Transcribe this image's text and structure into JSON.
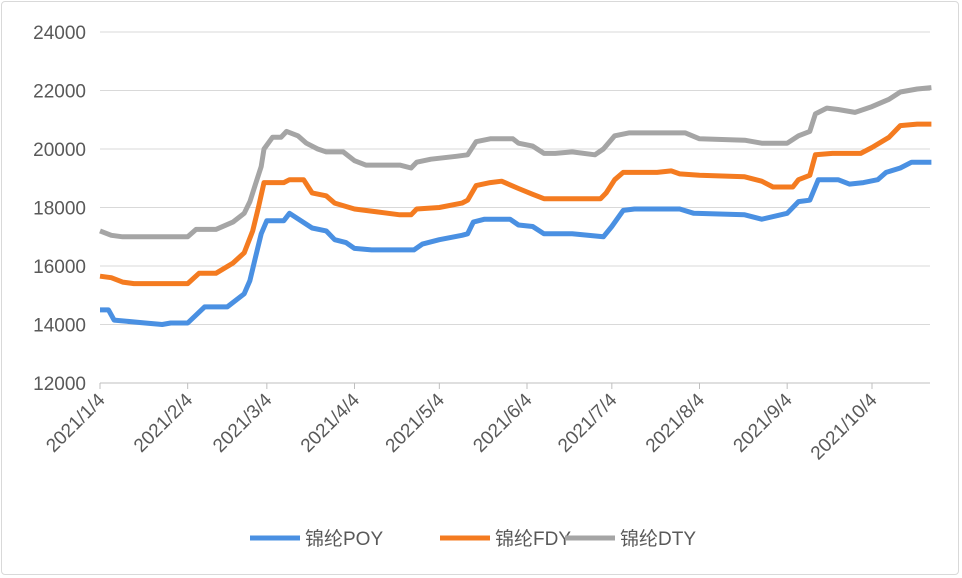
{
  "chart_data": {
    "type": "line",
    "title": "",
    "xlabel": "",
    "ylabel": "",
    "ylim": [
      12000,
      24000
    ],
    "yticks": [
      "12000",
      "14000",
      "16000",
      "18000",
      "20000",
      "22000",
      "24000"
    ],
    "xticks": [
      "2021/1/4",
      "2021/2/4",
      "2021/3/4",
      "2021/4/4",
      "2021/5/4",
      "2021/6/4",
      "2021/7/4",
      "2021/8/4",
      "2021/9/4",
      "2021/10/4"
    ],
    "grid": true,
    "legend": "bottom",
    "series": [
      {
        "name": "锦纶POY",
        "color": "#4a90e2",
        "points": [
          [
            "2021-01-04",
            14500
          ],
          [
            "2021-01-07",
            14500
          ],
          [
            "2021-01-09",
            14150
          ],
          [
            "2021-01-20",
            14050
          ],
          [
            "2021-01-26",
            14000
          ],
          [
            "2021-01-29",
            14050
          ],
          [
            "2021-02-04",
            14050
          ],
          [
            "2021-02-10",
            14600
          ],
          [
            "2021-02-18",
            14600
          ],
          [
            "2021-02-24",
            15050
          ],
          [
            "2021-02-26",
            15500
          ],
          [
            "2021-02-28",
            16300
          ],
          [
            "2021-03-02",
            17100
          ],
          [
            "2021-03-04",
            17550
          ],
          [
            "2021-03-10",
            17550
          ],
          [
            "2021-03-12",
            17800
          ],
          [
            "2021-03-20",
            17300
          ],
          [
            "2021-03-25",
            17200
          ],
          [
            "2021-03-28",
            16900
          ],
          [
            "2021-04-01",
            16800
          ],
          [
            "2021-04-04",
            16600
          ],
          [
            "2021-04-10",
            16550
          ],
          [
            "2021-04-25",
            16550
          ],
          [
            "2021-04-28",
            16750
          ],
          [
            "2021-05-04",
            16900
          ],
          [
            "2021-05-12",
            17050
          ],
          [
            "2021-05-14",
            17100
          ],
          [
            "2021-05-16",
            17500
          ],
          [
            "2021-05-20",
            17600
          ],
          [
            "2021-05-29",
            17600
          ],
          [
            "2021-06-01",
            17400
          ],
          [
            "2021-06-06",
            17350
          ],
          [
            "2021-06-10",
            17100
          ],
          [
            "2021-06-20",
            17100
          ],
          [
            "2021-07-01",
            17000
          ],
          [
            "2021-07-04",
            17350
          ],
          [
            "2021-07-08",
            17900
          ],
          [
            "2021-07-12",
            17950
          ],
          [
            "2021-07-28",
            17950
          ],
          [
            "2021-08-02",
            17800
          ],
          [
            "2021-08-20",
            17750
          ],
          [
            "2021-08-26",
            17600
          ],
          [
            "2021-09-04",
            17800
          ],
          [
            "2021-09-08",
            18200
          ],
          [
            "2021-09-12",
            18250
          ],
          [
            "2021-09-15",
            18950
          ],
          [
            "2021-09-22",
            18950
          ],
          [
            "2021-09-26",
            18800
          ],
          [
            "2021-10-01",
            18850
          ],
          [
            "2021-10-06",
            18950
          ],
          [
            "2021-10-09",
            19200
          ],
          [
            "2021-10-14",
            19350
          ],
          [
            "2021-10-18",
            19550
          ],
          [
            "2021-10-25",
            19550
          ]
        ]
      },
      {
        "name": "锦纶FDY",
        "color": "#f47b20",
        "points": [
          [
            "2021-01-04",
            15650
          ],
          [
            "2021-01-08",
            15600
          ],
          [
            "2021-01-12",
            15450
          ],
          [
            "2021-01-16",
            15400
          ],
          [
            "2021-02-04",
            15400
          ],
          [
            "2021-02-08",
            15750
          ],
          [
            "2021-02-14",
            15750
          ],
          [
            "2021-02-20",
            16100
          ],
          [
            "2021-02-24",
            16450
          ],
          [
            "2021-02-27",
            17200
          ],
          [
            "2021-03-01",
            18000
          ],
          [
            "2021-03-03",
            18850
          ],
          [
            "2021-03-10",
            18850
          ],
          [
            "2021-03-12",
            18950
          ],
          [
            "2021-03-17",
            18950
          ],
          [
            "2021-03-20",
            18500
          ],
          [
            "2021-03-25",
            18400
          ],
          [
            "2021-03-28",
            18150
          ],
          [
            "2021-04-04",
            17950
          ],
          [
            "2021-04-12",
            17850
          ],
          [
            "2021-04-20",
            17750
          ],
          [
            "2021-04-24",
            17750
          ],
          [
            "2021-04-26",
            17950
          ],
          [
            "2021-05-04",
            18000
          ],
          [
            "2021-05-12",
            18150
          ],
          [
            "2021-05-14",
            18250
          ],
          [
            "2021-05-17",
            18750
          ],
          [
            "2021-05-22",
            18850
          ],
          [
            "2021-05-26",
            18900
          ],
          [
            "2021-06-01",
            18650
          ],
          [
            "2021-06-06",
            18450
          ],
          [
            "2021-06-10",
            18300
          ],
          [
            "2021-06-30",
            18300
          ],
          [
            "2021-07-02",
            18500
          ],
          [
            "2021-07-05",
            18950
          ],
          [
            "2021-07-08",
            19200
          ],
          [
            "2021-07-20",
            19200
          ],
          [
            "2021-07-25",
            19250
          ],
          [
            "2021-07-28",
            19150
          ],
          [
            "2021-08-04",
            19100
          ],
          [
            "2021-08-20",
            19050
          ],
          [
            "2021-08-26",
            18900
          ],
          [
            "2021-08-30",
            18700
          ],
          [
            "2021-09-06",
            18700
          ],
          [
            "2021-09-08",
            18950
          ],
          [
            "2021-09-12",
            19100
          ],
          [
            "2021-09-14",
            19800
          ],
          [
            "2021-09-20",
            19850
          ],
          [
            "2021-09-30",
            19850
          ],
          [
            "2021-10-04",
            20050
          ],
          [
            "2021-10-10",
            20400
          ],
          [
            "2021-10-14",
            20800
          ],
          [
            "2021-10-20",
            20850
          ],
          [
            "2021-10-25",
            20850
          ]
        ]
      },
      {
        "name": "锦纶DTY",
        "color": "#a5a5a5",
        "points": [
          [
            "2021-01-04",
            17200
          ],
          [
            "2021-01-08",
            17050
          ],
          [
            "2021-01-12",
            17000
          ],
          [
            "2021-02-04",
            17000
          ],
          [
            "2021-02-07",
            17250
          ],
          [
            "2021-02-14",
            17250
          ],
          [
            "2021-02-20",
            17500
          ],
          [
            "2021-02-24",
            17800
          ],
          [
            "2021-02-26",
            18200
          ],
          [
            "2021-02-28",
            18800
          ],
          [
            "2021-03-02",
            19400
          ],
          [
            "2021-03-03",
            20000
          ],
          [
            "2021-03-06",
            20400
          ],
          [
            "2021-03-09",
            20400
          ],
          [
            "2021-03-11",
            20600
          ],
          [
            "2021-03-15",
            20450
          ],
          [
            "2021-03-18",
            20200
          ],
          [
            "2021-03-22",
            20000
          ],
          [
            "2021-03-25",
            19900
          ],
          [
            "2021-03-31",
            19900
          ],
          [
            "2021-04-04",
            19600
          ],
          [
            "2021-04-08",
            19450
          ],
          [
            "2021-04-20",
            19450
          ],
          [
            "2021-04-24",
            19350
          ],
          [
            "2021-04-26",
            19550
          ],
          [
            "2021-05-01",
            19650
          ],
          [
            "2021-05-10",
            19750
          ],
          [
            "2021-05-14",
            19800
          ],
          [
            "2021-05-17",
            20250
          ],
          [
            "2021-05-22",
            20350
          ],
          [
            "2021-05-30",
            20350
          ],
          [
            "2021-06-01",
            20200
          ],
          [
            "2021-06-06",
            20100
          ],
          [
            "2021-06-10",
            19850
          ],
          [
            "2021-06-14",
            19850
          ],
          [
            "2021-06-20",
            19900
          ],
          [
            "2021-06-28",
            19800
          ],
          [
            "2021-07-01",
            20000
          ],
          [
            "2021-07-05",
            20450
          ],
          [
            "2021-07-10",
            20550
          ],
          [
            "2021-07-30",
            20550
          ],
          [
            "2021-08-04",
            20350
          ],
          [
            "2021-08-20",
            20300
          ],
          [
            "2021-08-26",
            20200
          ],
          [
            "2021-09-04",
            20200
          ],
          [
            "2021-09-08",
            20450
          ],
          [
            "2021-09-12",
            20600
          ],
          [
            "2021-09-14",
            21200
          ],
          [
            "2021-09-18",
            21400
          ],
          [
            "2021-09-22",
            21350
          ],
          [
            "2021-09-28",
            21250
          ],
          [
            "2021-10-04",
            21450
          ],
          [
            "2021-10-10",
            21700
          ],
          [
            "2021-10-14",
            21950
          ],
          [
            "2021-10-20",
            22050
          ],
          [
            "2021-10-25",
            22100
          ]
        ]
      }
    ]
  }
}
